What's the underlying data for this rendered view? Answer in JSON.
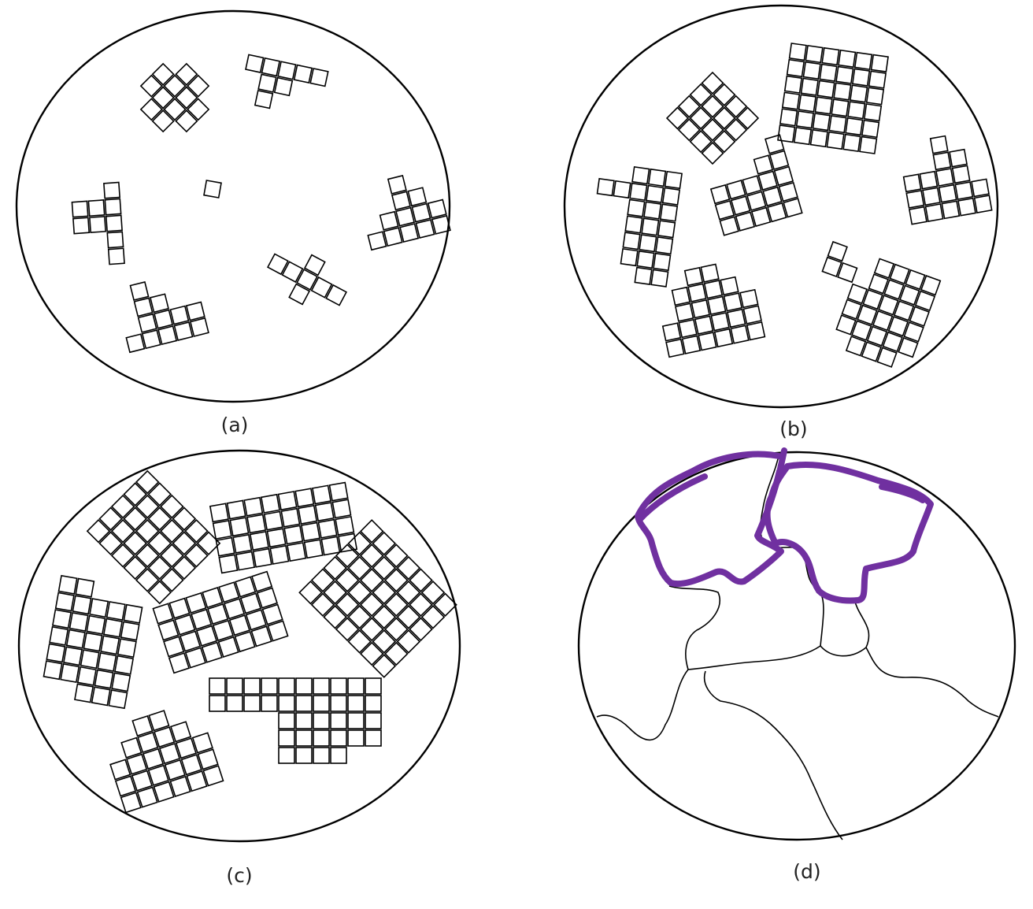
{
  "panels": [
    {
      "id": "a",
      "caption": "(a)"
    },
    {
      "id": "b",
      "caption": "(b)"
    },
    {
      "id": "c",
      "caption": "(c)"
    },
    {
      "id": "d",
      "caption": "(d)"
    }
  ],
  "colors": {
    "line": "#000000",
    "highlight": "#7030a0",
    "background": "#ffffff"
  }
}
